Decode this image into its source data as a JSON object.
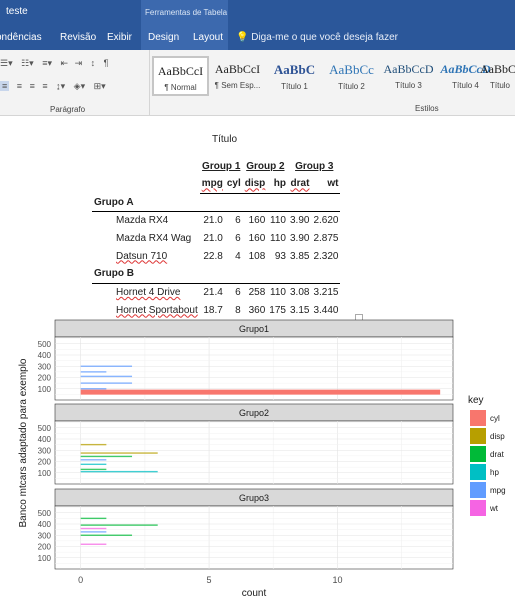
{
  "window": {
    "doc_title": "teste",
    "context_tab_group": "Ferramentas de Tabela"
  },
  "ribbon_tabs": [
    "ondências",
    "Revisão",
    "Exibir",
    "Design",
    "Layout"
  ],
  "tell_me": "Diga-me o que você deseja fazer",
  "ribbon": {
    "paragraph_label": "Parágrafo",
    "styles_label": "Estilos",
    "styles": [
      {
        "preview": "AaBbCcI",
        "name": "¶ Normal",
        "selected": true
      },
      {
        "preview": "AaBbCcI",
        "name": "¶ Sem Esp..."
      },
      {
        "preview": "AaBbC",
        "name": "Título 1"
      },
      {
        "preview": "AaBbCc",
        "name": "Título 2"
      },
      {
        "preview": "AaBbCcD",
        "name": "Título 3"
      },
      {
        "preview": "AaBbCcD",
        "name": "Título 4"
      },
      {
        "preview": "AaBbCc",
        "name": "Título"
      }
    ]
  },
  "table": {
    "caption": "Título",
    "spanners": [
      "Group 1",
      "Group 2",
      "Group 3"
    ],
    "columns": [
      "mpg",
      "cyl",
      "disp",
      "hp",
      "drat",
      "wt"
    ],
    "groups": [
      {
        "name": "Grupo A",
        "rows": [
          {
            "name": "Mazda RX4",
            "values": [
              "21.0",
              "6",
              "160",
              "110",
              "3.90",
              "2.620"
            ]
          },
          {
            "name": "Mazda RX4 Wag",
            "values": [
              "21.0",
              "6",
              "160",
              "110",
              "3.90",
              "2.875"
            ]
          },
          {
            "name": "Datsun 710",
            "values": [
              "22.8",
              "4",
              "108",
              "93",
              "3.85",
              "2.320"
            ]
          }
        ]
      },
      {
        "name": "Grupo B",
        "rows": [
          {
            "name": "Hornet 4 Drive",
            "values": [
              "21.4",
              "6",
              "258",
              "110",
              "3.08",
              "3.215"
            ]
          },
          {
            "name": "Hornet Sportabout",
            "values": [
              "18.7",
              "8",
              "360",
              "175",
              "3.15",
              "3.440"
            ]
          }
        ]
      }
    ]
  },
  "chart_data": {
    "type": "bar",
    "orientation": "horizontal",
    "facets": [
      "Grupo1",
      "Grupo2",
      "Grupo3"
    ],
    "xlabel": "count",
    "ylabel": "Banco mtcars adaptado para exemplo",
    "xlim": [
      -1,
      14.5
    ],
    "xticks": [
      0,
      5,
      10
    ],
    "ylim": [
      0,
      560
    ],
    "yticks": [
      100,
      200,
      300,
      400,
      500
    ],
    "legend": {
      "title": "key",
      "position": "right",
      "entries": [
        "cyl",
        "disp",
        "drat",
        "hp",
        "mpg",
        "wt"
      ]
    },
    "colors": {
      "cyl": "#F8766D",
      "disp": "#B79F00",
      "drat": "#00BA38",
      "hp": "#00BFC4",
      "mpg": "#619CFF",
      "wt": "#F564E3"
    },
    "bars": [
      {
        "facet": "Grupo1",
        "key": "cyl",
        "y": 70,
        "count": 14,
        "thick": true
      },
      {
        "facet": "Grupo1",
        "key": "mpg",
        "y": 100,
        "count": 1
      },
      {
        "facet": "Grupo1",
        "key": "mpg",
        "y": 150,
        "count": 2
      },
      {
        "facet": "Grupo1",
        "key": "mpg",
        "y": 210,
        "count": 2
      },
      {
        "facet": "Grupo1",
        "key": "mpg",
        "y": 250,
        "count": 1
      },
      {
        "facet": "Grupo1",
        "key": "mpg",
        "y": 300,
        "count": 2
      },
      {
        "facet": "Grupo2",
        "key": "hp",
        "y": 110,
        "count": 3
      },
      {
        "facet": "Grupo2",
        "key": "drat",
        "y": 130,
        "count": 1
      },
      {
        "facet": "Grupo2",
        "key": "hp",
        "y": 175,
        "count": 1
      },
      {
        "facet": "Grupo2",
        "key": "mpg",
        "y": 215,
        "count": 1
      },
      {
        "facet": "Grupo2",
        "key": "drat",
        "y": 245,
        "count": 2
      },
      {
        "facet": "Grupo2",
        "key": "disp",
        "y": 275,
        "count": 3
      },
      {
        "facet": "Grupo2",
        "key": "disp",
        "y": 350,
        "count": 1
      },
      {
        "facet": "Grupo3",
        "key": "wt",
        "y": 220,
        "count": 1
      },
      {
        "facet": "Grupo3",
        "key": "drat",
        "y": 300,
        "count": 2
      },
      {
        "facet": "Grupo3",
        "key": "mpg",
        "y": 330,
        "count": 1
      },
      {
        "facet": "Grupo3",
        "key": "wt",
        "y": 360,
        "count": 1
      },
      {
        "facet": "Grupo3",
        "key": "drat",
        "y": 390,
        "count": 3
      },
      {
        "facet": "Grupo3",
        "key": "drat",
        "y": 450,
        "count": 1
      }
    ]
  }
}
